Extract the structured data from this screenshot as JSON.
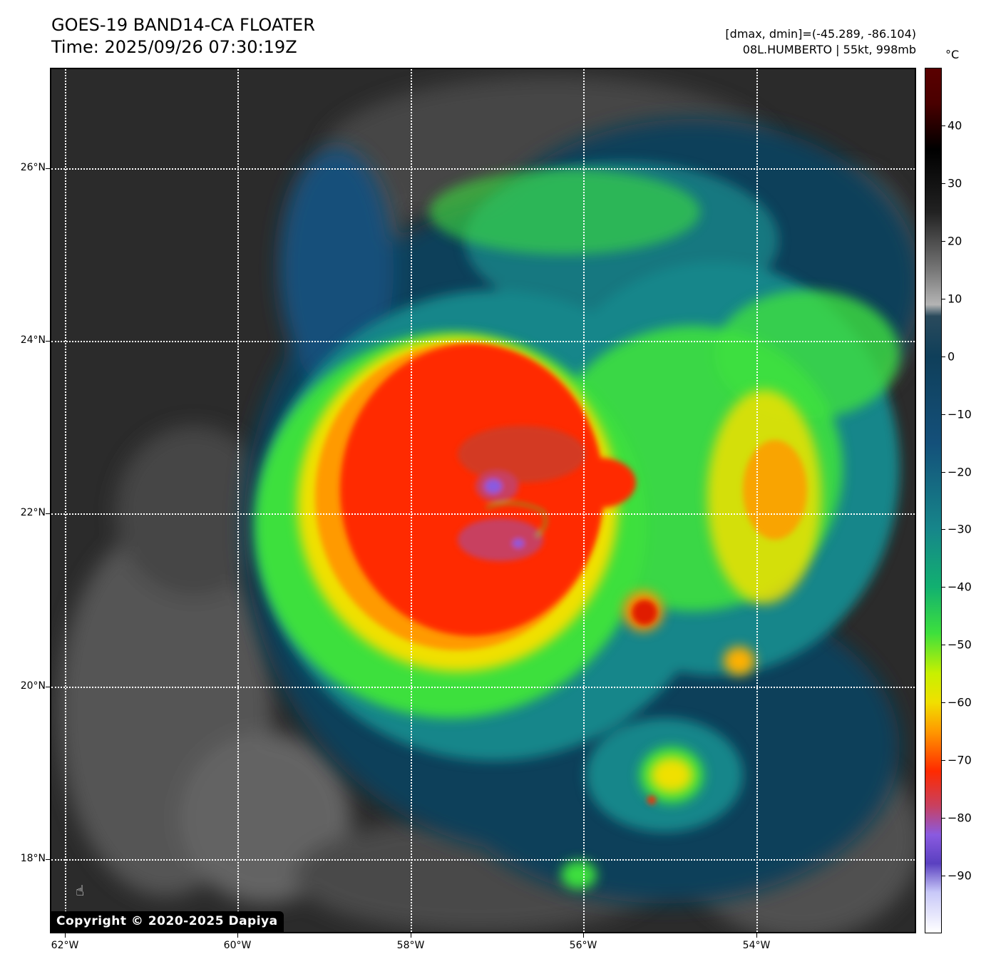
{
  "header": {
    "title_line1": "GOES-19 BAND14-CA FLOATER",
    "title_line2": "Time: 2025/09/26 07:30:19Z",
    "info_line1": "[dmax, dmin]=(-45.289, -86.104)",
    "info_line2": "08L.HUMBERTO | 55kt, 998mb"
  },
  "colorbar": {
    "unit": "°C",
    "range": [
      -100,
      50
    ],
    "ticks": [
      "40",
      "30",
      "20",
      "10",
      "0",
      "−10",
      "−20",
      "−30",
      "−40",
      "−50",
      "−60",
      "−70",
      "−80",
      "−90"
    ],
    "stops": [
      {
        "t": 50,
        "color": "#5a0000"
      },
      {
        "t": 44,
        "color": "#4a0000"
      },
      {
        "t": 36,
        "color": "#000000"
      },
      {
        "t": 25,
        "color": "#222222"
      },
      {
        "t": 15,
        "color": "#777777"
      },
      {
        "t": 9,
        "color": "#b4b4b4"
      },
      {
        "t": 7,
        "color": "#2a4a5c"
      },
      {
        "t": 0,
        "color": "#0f3f5a"
      },
      {
        "t": -15,
        "color": "#14507a"
      },
      {
        "t": -30,
        "color": "#16868a"
      },
      {
        "t": -40,
        "color": "#12b070"
      },
      {
        "t": -48,
        "color": "#3de03d"
      },
      {
        "t": -55,
        "color": "#c8f000"
      },
      {
        "t": -60,
        "color": "#f0e000"
      },
      {
        "t": -65,
        "color": "#ff9a00"
      },
      {
        "t": -72,
        "color": "#ff2a00"
      },
      {
        "t": -78,
        "color": "#c84060"
      },
      {
        "t": -83,
        "color": "#8a5ae0"
      },
      {
        "t": -88,
        "color": "#5a40c0"
      },
      {
        "t": -93,
        "color": "#c8c8f8"
      },
      {
        "t": -100,
        "color": "#ffffff"
      }
    ]
  },
  "map": {
    "lon_labels": [
      "62°W",
      "60°W",
      "58°W",
      "56°W",
      "54°W"
    ],
    "lat_labels": [
      "26°N",
      "24°N",
      "22°N",
      "20°N",
      "18°N"
    ],
    "copyright": "Copyright © 2020-2025 Dapiya",
    "colors": {
      "clear_sky": "#2b2b2b",
      "low_cloud": "#6a6a6a",
      "shallow_cloud": "#0f3f5a",
      "cold_cloud": "#16868a",
      "convection": "#3de03d",
      "deep_convection": "#f0e000",
      "very_deep": "#ff2a00",
      "overshooting": "#8a5ae0"
    }
  }
}
